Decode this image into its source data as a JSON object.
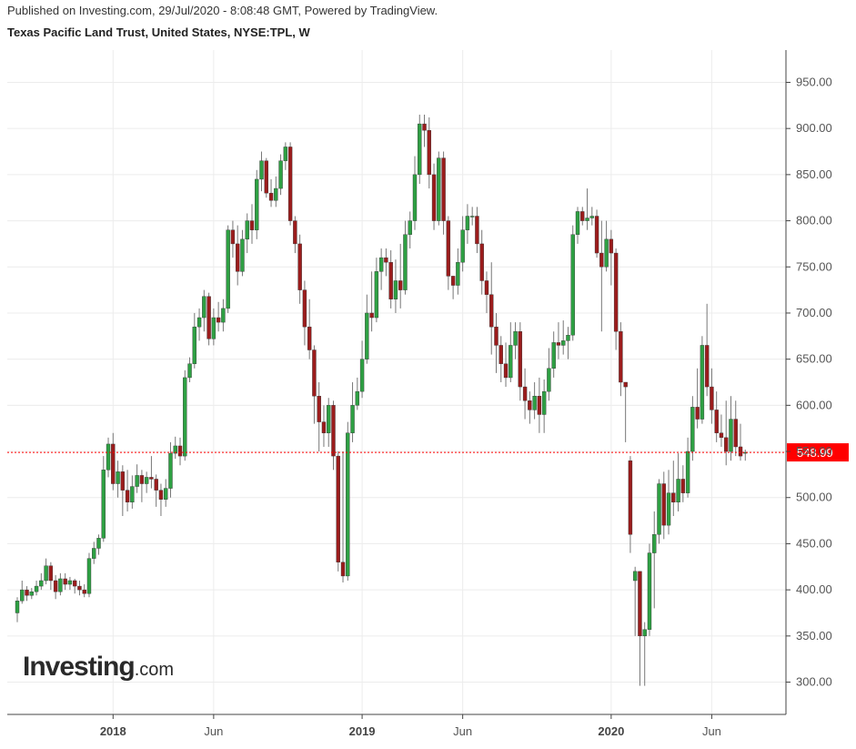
{
  "header": {
    "published": "Published on Investing.com, 29/Jul/2020 - 8:08:48 GMT, Powered by TradingView.",
    "title": "Texas Pacific Land Trust, United States, NYSE:TPL, W"
  },
  "logo": {
    "brand": "Investing",
    "tld": ".com"
  },
  "colors": {
    "up": "#2ea043",
    "down": "#9b1c1c",
    "wick": "#777777",
    "price_line": "#ff0000",
    "grid": "#ececec",
    "axis": "#444444"
  },
  "chart_data": {
    "type": "candlestick",
    "interval": "W",
    "ylim": [
      265,
      985
    ],
    "yticks": [
      300,
      350,
      400,
      450,
      500,
      550,
      600,
      650,
      700,
      750,
      800,
      850,
      900,
      950
    ],
    "ytick_labels": [
      "300.00",
      "350.00",
      "400.00",
      "450.00",
      "500.00",
      "550.00",
      "600.00",
      "650.00",
      "700.00",
      "750.00",
      "800.00",
      "850.00",
      "900.00",
      "950.00"
    ],
    "xticks": [
      {
        "label": "2018",
        "index": 20,
        "year": true
      },
      {
        "label": "Jun",
        "index": 41,
        "year": false
      },
      {
        "label": "2019",
        "index": 72,
        "year": true
      },
      {
        "label": "Jun",
        "index": 93,
        "year": false
      },
      {
        "label": "2020",
        "index": 124,
        "year": true
      },
      {
        "label": "Jun",
        "index": 145,
        "year": false
      }
    ],
    "last_price": 548.99,
    "last_price_label": "548.99",
    "candles": [
      [
        375,
        388,
        365,
        392
      ],
      [
        388,
        400,
        385,
        410
      ],
      [
        400,
        394,
        388,
        404
      ],
      [
        394,
        398,
        390,
        402
      ],
      [
        398,
        404,
        394,
        410
      ],
      [
        404,
        410,
        400,
        418
      ],
      [
        410,
        426,
        406,
        434
      ],
      [
        426,
        410,
        400,
        430
      ],
      [
        410,
        398,
        390,
        416
      ],
      [
        398,
        412,
        394,
        418
      ],
      [
        412,
        406,
        400,
        418
      ],
      [
        406,
        410,
        400,
        414
      ],
      [
        410,
        404,
        396,
        412
      ],
      [
        404,
        400,
        394,
        410
      ],
      [
        400,
        396,
        392,
        406
      ],
      [
        396,
        434,
        392,
        440
      ],
      [
        434,
        445,
        428,
        452
      ],
      [
        445,
        456,
        438,
        460
      ],
      [
        456,
        530,
        452,
        545
      ],
      [
        530,
        558,
        522,
        565
      ],
      [
        558,
        515,
        508,
        570
      ],
      [
        515,
        528,
        500,
        540
      ],
      [
        528,
        508,
        480,
        535
      ],
      [
        508,
        495,
        485,
        530
      ],
      [
        495,
        512,
        488,
        524
      ],
      [
        512,
        524,
        505,
        536
      ],
      [
        524,
        515,
        495,
        530
      ],
      [
        515,
        522,
        505,
        528
      ],
      [
        522,
        520,
        510,
        545
      ],
      [
        520,
        508,
        490,
        525
      ],
      [
        508,
        498,
        480,
        515
      ],
      [
        498,
        510,
        490,
        520
      ],
      [
        510,
        548,
        500,
        560
      ],
      [
        548,
        556,
        542,
        566
      ],
      [
        556,
        545,
        535,
        565
      ],
      [
        545,
        630,
        540,
        638
      ],
      [
        630,
        645,
        625,
        652
      ],
      [
        645,
        685,
        640,
        700
      ],
      [
        685,
        695,
        670,
        705
      ],
      [
        695,
        718,
        680,
        725
      ],
      [
        718,
        672,
        665,
        722
      ],
      [
        672,
        695,
        665,
        705
      ],
      [
        695,
        690,
        680,
        712
      ],
      [
        690,
        705,
        680,
        715
      ],
      [
        705,
        790,
        700,
        795
      ],
      [
        790,
        775,
        760,
        800
      ],
      [
        775,
        745,
        730,
        795
      ],
      [
        745,
        780,
        740,
        790
      ],
      [
        780,
        800,
        765,
        808
      ],
      [
        800,
        790,
        775,
        818
      ],
      [
        790,
        845,
        780,
        855
      ],
      [
        845,
        865,
        832,
        875
      ],
      [
        865,
        830,
        825,
        868
      ],
      [
        830,
        822,
        815,
        845
      ],
      [
        822,
        835,
        815,
        848
      ],
      [
        835,
        865,
        828,
        872
      ],
      [
        865,
        880,
        855,
        885
      ],
      [
        880,
        800,
        795,
        885
      ],
      [
        800,
        775,
        765,
        805
      ],
      [
        775,
        725,
        710,
        785
      ],
      [
        725,
        685,
        665,
        735
      ],
      [
        685,
        660,
        650,
        715
      ],
      [
        660,
        610,
        580,
        665
      ],
      [
        610,
        582,
        550,
        625
      ],
      [
        582,
        570,
        555,
        600
      ],
      [
        570,
        600,
        555,
        608
      ],
      [
        600,
        545,
        530,
        605
      ],
      [
        545,
        430,
        420,
        550
      ],
      [
        430,
        415,
        408,
        550
      ],
      [
        415,
        570,
        410,
        582
      ],
      [
        570,
        600,
        560,
        625
      ],
      [
        600,
        615,
        595,
        630
      ],
      [
        615,
        650,
        608,
        670
      ],
      [
        650,
        700,
        645,
        720
      ],
      [
        700,
        695,
        680,
        745
      ],
      [
        695,
        745,
        690,
        760
      ],
      [
        745,
        760,
        725,
        770
      ],
      [
        760,
        755,
        740,
        770
      ],
      [
        755,
        715,
        705,
        768
      ],
      [
        715,
        735,
        700,
        758
      ],
      [
        735,
        725,
        705,
        775
      ],
      [
        725,
        785,
        720,
        800
      ],
      [
        785,
        800,
        770,
        810
      ],
      [
        800,
        850,
        790,
        870
      ],
      [
        850,
        905,
        840,
        915
      ],
      [
        905,
        898,
        880,
        915
      ],
      [
        898,
        850,
        835,
        912
      ],
      [
        850,
        800,
        790,
        862
      ],
      [
        800,
        868,
        795,
        875
      ],
      [
        868,
        800,
        785,
        875
      ],
      [
        800,
        740,
        725,
        805
      ],
      [
        740,
        730,
        715,
        740
      ],
      [
        730,
        755,
        720,
        770
      ],
      [
        755,
        790,
        745,
        805
      ],
      [
        790,
        805,
        775,
        818
      ],
      [
        805,
        805,
        795,
        815
      ],
      [
        805,
        775,
        765,
        815
      ],
      [
        775,
        735,
        720,
        790
      ],
      [
        735,
        720,
        700,
        745
      ],
      [
        720,
        685,
        655,
        755
      ],
      [
        685,
        665,
        635,
        700
      ],
      [
        665,
        645,
        625,
        675
      ],
      [
        645,
        630,
        620,
        668
      ],
      [
        630,
        665,
        625,
        690
      ],
      [
        665,
        680,
        650,
        690
      ],
      [
        680,
        620,
        605,
        690
      ],
      [
        620,
        605,
        585,
        640
      ],
      [
        605,
        595,
        580,
        615
      ],
      [
        595,
        610,
        585,
        625
      ],
      [
        610,
        590,
        570,
        630
      ],
      [
        590,
        615,
        570,
        628
      ],
      [
        615,
        640,
        605,
        662
      ],
      [
        640,
        668,
        630,
        680
      ],
      [
        668,
        665,
        650,
        690
      ],
      [
        665,
        670,
        655,
        692
      ],
      [
        670,
        676,
        650,
        685
      ],
      [
        676,
        785,
        670,
        795
      ],
      [
        785,
        810,
        775,
        815
      ],
      [
        810,
        800,
        795,
        815
      ],
      [
        800,
        803,
        790,
        835
      ],
      [
        803,
        805,
        795,
        815
      ],
      [
        805,
        765,
        760,
        812
      ],
      [
        765,
        750,
        680,
        800
      ],
      [
        750,
        780,
        745,
        800
      ],
      [
        780,
        765,
        730,
        790
      ],
      [
        765,
        680,
        660,
        770
      ],
      [
        680,
        625,
        610,
        690
      ],
      [
        625,
        620,
        560,
        625
      ],
      [
        540,
        460,
        440,
        545
      ],
      [
        410,
        420,
        350,
        425
      ],
      [
        420,
        350,
        296,
        420
      ],
      [
        350,
        357,
        296,
        365
      ],
      [
        357,
        440,
        350,
        450
      ],
      [
        440,
        460,
        380,
        485
      ],
      [
        460,
        515,
        450,
        520
      ],
      [
        515,
        470,
        455,
        528
      ],
      [
        470,
        505,
        460,
        530
      ],
      [
        505,
        495,
        480,
        540
      ],
      [
        495,
        520,
        485,
        548
      ],
      [
        520,
        505,
        495,
        535
      ],
      [
        505,
        550,
        500,
        565
      ],
      [
        550,
        598,
        540,
        610
      ],
      [
        598,
        585,
        575,
        640
      ],
      [
        585,
        665,
        580,
        675
      ],
      [
        665,
        620,
        610,
        710
      ],
      [
        620,
        595,
        580,
        640
      ],
      [
        595,
        570,
        560,
        615
      ],
      [
        570,
        565,
        555,
        590
      ],
      [
        565,
        550,
        535,
        605
      ],
      [
        550,
        585,
        540,
        610
      ],
      [
        585,
        555,
        545,
        605
      ],
      [
        555,
        545,
        540,
        580
      ],
      [
        548,
        549,
        540,
        552
      ]
    ]
  }
}
